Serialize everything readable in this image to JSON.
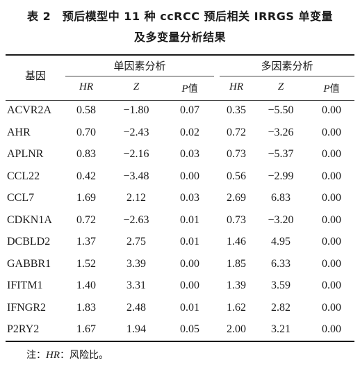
{
  "title": {
    "line1": "表 2　预后模型中 11 种 ccRCC 预后相关 IRRGS 单变量",
    "line2": "及多变量分析结果"
  },
  "header": {
    "gene": "基因",
    "univariate": "单因素分析",
    "multivariate": "多因素分析",
    "sub": {
      "hr": "HR",
      "z": "Z",
      "p_italic": "P",
      "p_suffix": "值"
    }
  },
  "rows": [
    {
      "gene": "ACVR2A",
      "uni_hr": "0.58",
      "uni_z": "−1.80",
      "uni_p": "0.07",
      "multi_hr": "0.35",
      "multi_z": "−5.50",
      "multi_p": "0.00"
    },
    {
      "gene": "AHR",
      "uni_hr": "0.70",
      "uni_z": "−2.43",
      "uni_p": "0.02",
      "multi_hr": "0.72",
      "multi_z": "−3.26",
      "multi_p": "0.00"
    },
    {
      "gene": "APLNR",
      "uni_hr": "0.83",
      "uni_z": "−2.16",
      "uni_p": "0.03",
      "multi_hr": "0.73",
      "multi_z": "−5.37",
      "multi_p": "0.00"
    },
    {
      "gene": "CCL22",
      "uni_hr": "0.42",
      "uni_z": "−3.48",
      "uni_p": "0.00",
      "multi_hr": "0.56",
      "multi_z": "−2.99",
      "multi_p": "0.00"
    },
    {
      "gene": "CCL7",
      "uni_hr": "1.69",
      "uni_z": "2.12",
      "uni_p": "0.03",
      "multi_hr": "2.69",
      "multi_z": "6.83",
      "multi_p": "0.00"
    },
    {
      "gene": "CDKN1A",
      "uni_hr": "0.72",
      "uni_z": "−2.63",
      "uni_p": "0.01",
      "multi_hr": "0.73",
      "multi_z": "−3.20",
      "multi_p": "0.00"
    },
    {
      "gene": "DCBLD2",
      "uni_hr": "1.37",
      "uni_z": "2.75",
      "uni_p": "0.01",
      "multi_hr": "1.46",
      "multi_z": "4.95",
      "multi_p": "0.00"
    },
    {
      "gene": "GABBR1",
      "uni_hr": "1.52",
      "uni_z": "3.39",
      "uni_p": "0.00",
      "multi_hr": "1.85",
      "multi_z": "6.33",
      "multi_p": "0.00"
    },
    {
      "gene": "IFITM1",
      "uni_hr": "1.40",
      "uni_z": "3.31",
      "uni_p": "0.00",
      "multi_hr": "1.39",
      "multi_z": "3.59",
      "multi_p": "0.00"
    },
    {
      "gene": "IFNGR2",
      "uni_hr": "1.83",
      "uni_z": "2.48",
      "uni_p": "0.01",
      "multi_hr": "1.62",
      "multi_z": "2.82",
      "multi_p": "0.00"
    },
    {
      "gene": "P2RY2",
      "uni_hr": "1.67",
      "uni_z": "1.94",
      "uni_p": "0.05",
      "multi_hr": "2.00",
      "multi_z": "3.21",
      "multi_p": "0.00"
    }
  ],
  "note": {
    "prefix": "注：",
    "term": "HR",
    "definition": "：风险比。"
  }
}
